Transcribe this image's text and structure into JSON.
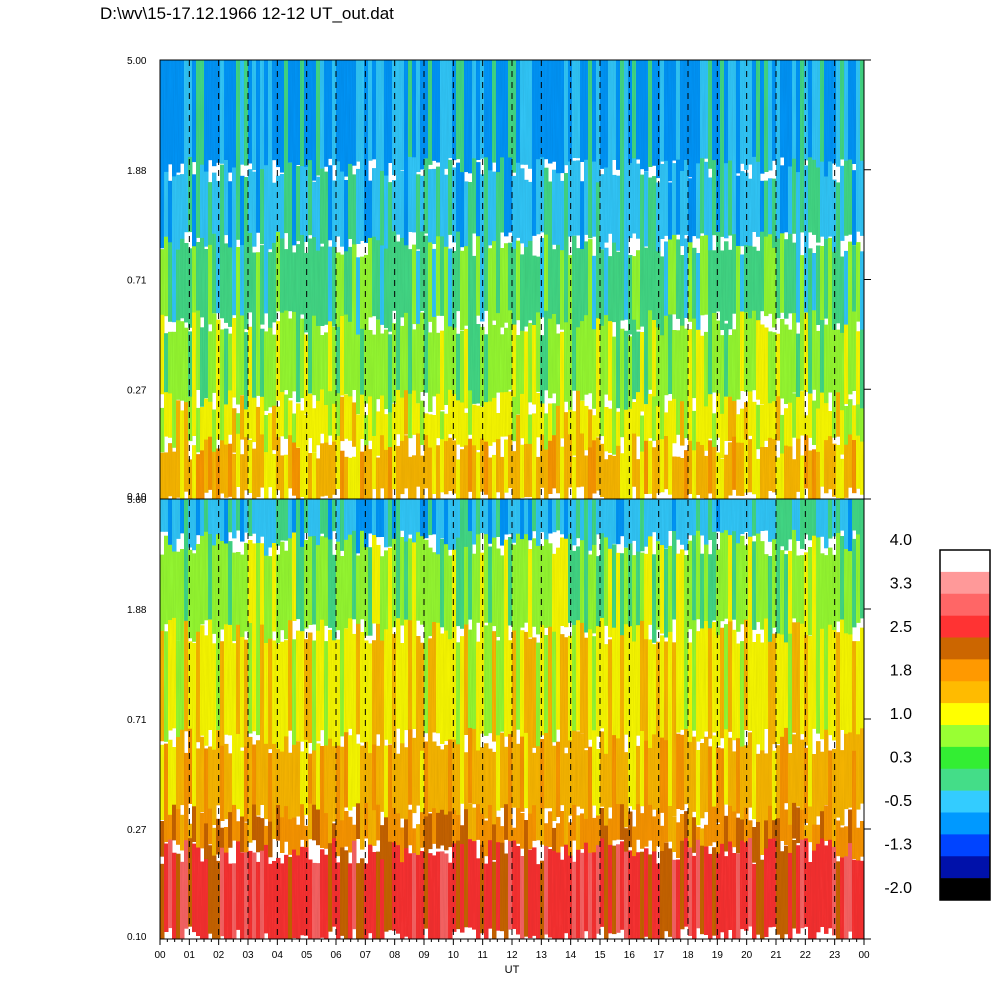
{
  "title": "D:\\wv\\15-17.12.1966  12-12 UT_out.dat",
  "chart_data": [
    {
      "type": "heatmap",
      "panel": "top",
      "y_ticks": [
        "5.00",
        "1.88",
        "0.71",
        "0.27",
        "0.10"
      ],
      "y_scale": "log",
      "ylim": [
        0.1,
        5.0
      ],
      "dominant_levels_by_height": [
        {
          "from": "0.10",
          "to": "0.27",
          "level": "1.0 to 1.8"
        },
        {
          "from": "0.27",
          "to": "0.71",
          "level": "0.3 to 1.0"
        },
        {
          "from": "0.71",
          "to": "1.88",
          "level": "-0.5 to 0.3"
        },
        {
          "from": "1.88",
          "to": "5.00",
          "level": "-1.3 to -0.5"
        }
      ]
    },
    {
      "type": "heatmap",
      "panel": "bottom",
      "y_ticks": [
        "5.00",
        "1.88",
        "0.71",
        "0.27",
        "0.10"
      ],
      "y_scale": "log",
      "ylim": [
        0.1,
        5.0
      ],
      "dominant_levels_by_height": [
        {
          "from": "0.10",
          "to": "0.27",
          "level": "2.5 to 3.3"
        },
        {
          "from": "0.27",
          "to": "0.71",
          "level": "1.0 to 2.5"
        },
        {
          "from": "0.71",
          "to": "1.88",
          "level": "0.3 to 1.8"
        },
        {
          "from": "1.88",
          "to": "5.00",
          "level": "-0.5 to 1.0"
        }
      ]
    }
  ],
  "x_axis": {
    "label": "UT",
    "ticks": [
      "00",
      "01",
      "02",
      "03",
      "04",
      "05",
      "06",
      "07",
      "08",
      "09",
      "10",
      "11",
      "12",
      "13",
      "14",
      "15",
      "16",
      "17",
      "18",
      "19",
      "20",
      "21",
      "22",
      "23",
      "00"
    ]
  },
  "colorbar": {
    "labels": [
      "4.0",
      "3.3",
      "2.5",
      "1.8",
      "1.0",
      "0.3",
      "-0.5",
      "-1.3",
      "-2.0"
    ],
    "colors": [
      "#ffffff",
      "#ff9999",
      "#ff6666",
      "#ff3333",
      "#cc6600",
      "#ff9900",
      "#ffbb00",
      "#ffff00",
      "#99ff33",
      "#33ee33",
      "#44dd88",
      "#33ccff",
      "#0099ff",
      "#0044ff",
      "#0011aa",
      "#000000"
    ]
  }
}
